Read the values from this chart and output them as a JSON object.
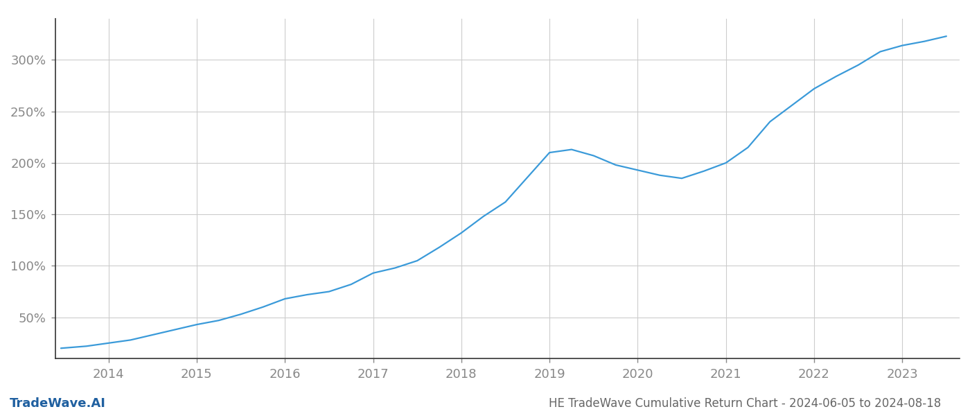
{
  "title": "HE TradeWave Cumulative Return Chart - 2024-06-05 to 2024-08-18",
  "watermark": "TradeWave.AI",
  "line_color": "#3a9ad9",
  "background_color": "#ffffff",
  "grid_color": "#cccccc",
  "axis_color": "#888888",
  "title_color": "#666666",
  "watermark_color": "#2060a0",
  "x_years": [
    2013.46,
    2013.75,
    2014.0,
    2014.25,
    2014.5,
    2014.75,
    2015.0,
    2015.25,
    2015.5,
    2015.75,
    2016.0,
    2016.25,
    2016.5,
    2016.75,
    2017.0,
    2017.25,
    2017.5,
    2017.75,
    2018.0,
    2018.25,
    2018.5,
    2018.75,
    2019.0,
    2019.25,
    2019.5,
    2019.75,
    2020.0,
    2020.25,
    2020.5,
    2020.75,
    2021.0,
    2021.25,
    2021.5,
    2021.75,
    2022.0,
    2022.25,
    2022.5,
    2022.75,
    2023.0,
    2023.25,
    2023.5
  ],
  "y_values": [
    20,
    22,
    25,
    28,
    33,
    38,
    43,
    47,
    53,
    60,
    68,
    72,
    75,
    82,
    93,
    98,
    105,
    118,
    132,
    148,
    162,
    186,
    210,
    213,
    207,
    198,
    193,
    188,
    185,
    192,
    200,
    215,
    240,
    256,
    272,
    284,
    295,
    308,
    314,
    318,
    323
  ],
  "yticks": [
    50,
    100,
    150,
    200,
    250,
    300
  ],
  "xticks": [
    2014,
    2015,
    2016,
    2017,
    2018,
    2019,
    2020,
    2021,
    2022,
    2023
  ],
  "xlim": [
    2013.4,
    2023.65
  ],
  "ylim": [
    10,
    340
  ],
  "line_width": 1.6,
  "title_fontsize": 12,
  "tick_fontsize": 13,
  "watermark_fontsize": 13
}
